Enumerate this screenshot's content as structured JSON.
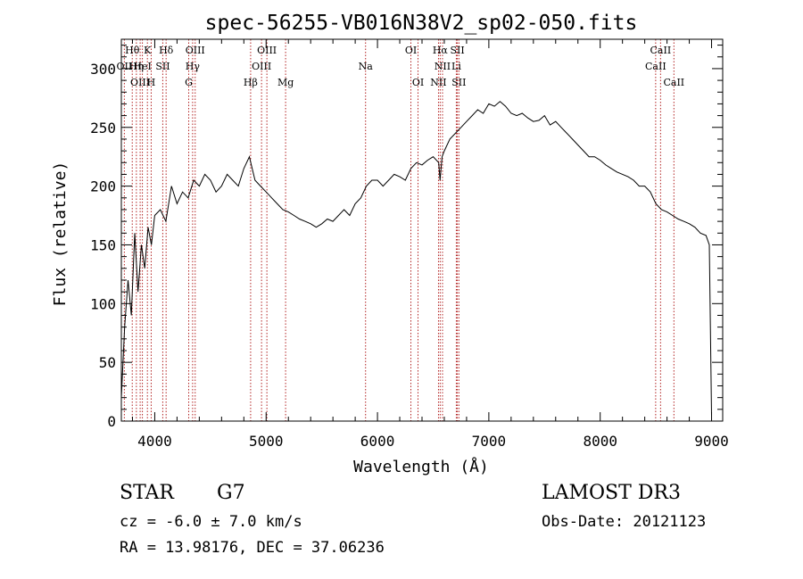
{
  "chart_data": {
    "type": "line",
    "title": "spec-56255-VB016N38V2_sp02-050.fits",
    "xlabel": "Wavelength (Å)",
    "ylabel": "Flux (relative)",
    "xlim": [
      3700,
      9100
    ],
    "ylim": [
      0,
      325
    ],
    "x_ticks": [
      4000,
      5000,
      6000,
      7000,
      8000,
      9000
    ],
    "y_ticks": [
      0,
      50,
      100,
      150,
      200,
      250,
      300
    ],
    "grid": false,
    "series": [
      {
        "name": "flux",
        "x": [
          3700,
          3730,
          3760,
          3790,
          3820,
          3850,
          3880,
          3910,
          3940,
          3970,
          4000,
          4050,
          4100,
          4150,
          4200,
          4250,
          4300,
          4350,
          4400,
          4450,
          4500,
          4550,
          4600,
          4650,
          4700,
          4750,
          4800,
          4850,
          4900,
          4950,
          5000,
          5050,
          5100,
          5150,
          5200,
          5250,
          5300,
          5350,
          5400,
          5450,
          5500,
          5550,
          5600,
          5650,
          5700,
          5750,
          5800,
          5850,
          5900,
          5950,
          6000,
          6050,
          6100,
          6150,
          6200,
          6250,
          6300,
          6350,
          6400,
          6450,
          6500,
          6550,
          6562,
          6580,
          6600,
          6650,
          6700,
          6750,
          6800,
          6850,
          6900,
          6950,
          7000,
          7050,
          7100,
          7150,
          7200,
          7250,
          7300,
          7350,
          7400,
          7450,
          7500,
          7550,
          7600,
          7650,
          7700,
          7750,
          7800,
          7850,
          7900,
          7950,
          8000,
          8050,
          8100,
          8150,
          8200,
          8250,
          8300,
          8350,
          8400,
          8450,
          8500,
          8550,
          8600,
          8650,
          8700,
          8750,
          8800,
          8850,
          8900,
          8950,
          8980,
          9000
        ],
        "values": [
          20,
          80,
          120,
          90,
          160,
          110,
          150,
          130,
          165,
          150,
          175,
          180,
          170,
          200,
          185,
          195,
          190,
          205,
          200,
          210,
          205,
          195,
          200,
          210,
          205,
          200,
          215,
          225,
          205,
          200,
          195,
          190,
          185,
          180,
          178,
          175,
          172,
          170,
          168,
          165,
          168,
          172,
          170,
          175,
          180,
          175,
          185,
          190,
          200,
          205,
          205,
          200,
          205,
          210,
          208,
          205,
          215,
          220,
          218,
          222,
          225,
          220,
          205,
          225,
          230,
          240,
          245,
          250,
          255,
          260,
          265,
          262,
          270,
          268,
          272,
          268,
          262,
          260,
          262,
          258,
          255,
          256,
          260,
          252,
          255,
          250,
          245,
          240,
          235,
          230,
          225,
          225,
          222,
          218,
          215,
          212,
          210,
          208,
          205,
          200,
          200,
          195,
          185,
          180,
          178,
          175,
          172,
          170,
          168,
          165,
          160,
          158,
          150,
          5
        ]
      }
    ],
    "spectral_lines": [
      {
        "label": "Hθ",
        "x": 3798,
        "row": 0
      },
      {
        "label": "K",
        "x": 3934,
        "row": 0
      },
      {
        "label": "Hδ",
        "x": 4102,
        "row": 0
      },
      {
        "label": "OIII",
        "x": 4363,
        "row": 0
      },
      {
        "label": "OIII",
        "x": 5007,
        "row": 0
      },
      {
        "label": "OI",
        "x": 6300,
        "row": 0
      },
      {
        "label": "Hα",
        "x": 6563,
        "row": 0
      },
      {
        "label": "SII",
        "x": 6717,
        "row": 0
      },
      {
        "label": "CaII",
        "x": 8542,
        "row": 0
      },
      {
        "label": "OII",
        "x": 3727,
        "row": 1
      },
      {
        "label": "Hη",
        "x": 3835,
        "row": 1
      },
      {
        "label": "HeI",
        "x": 3889,
        "row": 1
      },
      {
        "label": "SII",
        "x": 4072,
        "row": 1
      },
      {
        "label": "Hγ",
        "x": 4340,
        "row": 1
      },
      {
        "label": "OIII",
        "x": 4959,
        "row": 1
      },
      {
        "label": "Na",
        "x": 5893,
        "row": 1
      },
      {
        "label": "NII",
        "x": 6584,
        "row": 1
      },
      {
        "label": "Li",
        "x": 6708,
        "row": 1
      },
      {
        "label": "CaII",
        "x": 8498,
        "row": 1
      },
      {
        "label": "OIII",
        "x": 3869,
        "row": 2
      },
      {
        "label": "H",
        "x": 3968,
        "row": 2
      },
      {
        "label": "G",
        "x": 4305,
        "row": 2
      },
      {
        "label": "Hβ",
        "x": 4861,
        "row": 2
      },
      {
        "label": "Mg",
        "x": 5175,
        "row": 2
      },
      {
        "label": "OI",
        "x": 6364,
        "row": 2
      },
      {
        "label": "NII",
        "x": 6548,
        "row": 2
      },
      {
        "label": "SII",
        "x": 6731,
        "row": 2
      },
      {
        "label": "CaII",
        "x": 8662,
        "row": 2
      }
    ]
  },
  "info": {
    "class": "STAR",
    "subclass": "G7",
    "cz": "cz = -6.0 ± 7.0 km/s",
    "coords": "RA =  13.98176, DEC =  37.06236",
    "survey": "LAMOST DR3",
    "obs_date": "Obs-Date: 20121123"
  },
  "colors": {
    "line": "#000000",
    "marker": "#b22222"
  }
}
